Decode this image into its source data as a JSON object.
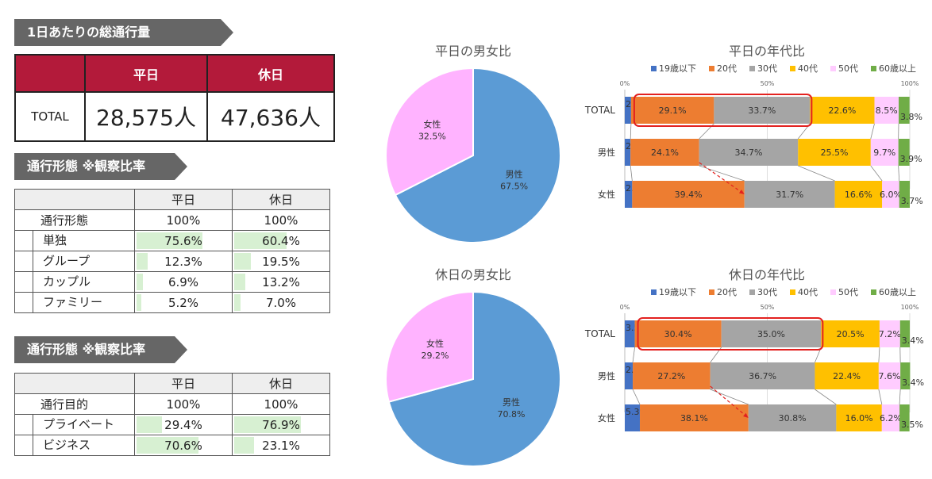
{
  "total_section": {
    "title": "1日あたりの総通行量",
    "headers": [
      "平日",
      "休日"
    ],
    "row_label": "TOTAL",
    "values": [
      "28,575人",
      "47,636人"
    ],
    "header_color": "#b31a3a"
  },
  "mode_section": {
    "title": "通行形態 ※観察比率",
    "headers": [
      "平日",
      "休日"
    ],
    "rows": [
      {
        "label": "通行形態",
        "weekday": "100%",
        "holiday": "100%",
        "bar": false
      },
      {
        "label": "単独",
        "weekday": "75.6%",
        "holiday": "60.4%",
        "wd": 75.6,
        "hd": 60.4,
        "bar": true
      },
      {
        "label": "グループ",
        "weekday": "12.3%",
        "holiday": "19.5%",
        "wd": 12.3,
        "hd": 19.5,
        "bar": true
      },
      {
        "label": "カップル",
        "weekday": "6.9%",
        "holiday": "13.2%",
        "wd": 6.9,
        "hd": 13.2,
        "bar": true
      },
      {
        "label": "ファミリー",
        "weekday": "5.2%",
        "holiday": "7.0%",
        "wd": 5.2,
        "hd": 7.0,
        "bar": true
      }
    ]
  },
  "purpose_section": {
    "title": "通行形態 ※観察比率",
    "headers": [
      "平日",
      "休日"
    ],
    "rows": [
      {
        "label": "通行目的",
        "weekday": "100%",
        "holiday": "100%",
        "bar": false
      },
      {
        "label": "プライベート",
        "weekday": "29.4%",
        "holiday": "76.9%",
        "wd": 29.4,
        "hd": 76.9,
        "bar": true
      },
      {
        "label": "ビジネス",
        "weekday": "70.6%",
        "holiday": "23.1%",
        "wd": 70.6,
        "hd": 23.1,
        "bar": true
      }
    ]
  },
  "chart_data": [
    {
      "type": "pie",
      "title": "平日の男女比",
      "labels": [
        "男性",
        "女性"
      ],
      "values": [
        67.5,
        32.5
      ],
      "value_labels": [
        "67.5%",
        "32.5%"
      ],
      "colors": [
        "#5b9bd5",
        "#ffb3ff"
      ]
    },
    {
      "type": "pie",
      "title": "休日の男女比",
      "labels": [
        "男性",
        "女性"
      ],
      "values": [
        70.8,
        29.2
      ],
      "value_labels": [
        "70.8%",
        "29.2%"
      ],
      "colors": [
        "#5b9bd5",
        "#ffb3ff"
      ]
    },
    {
      "type": "bar",
      "stacked": true,
      "orientation": "horizontal",
      "title": "平日の年代比",
      "categories": [
        "TOTAL",
        "男性",
        "女性"
      ],
      "xlim": [
        0,
        100
      ],
      "tick_labels": [
        "0%",
        "50%",
        "100%"
      ],
      "legend_position": "top",
      "series": [
        {
          "name": "19歳以下",
          "color": "#4472c4",
          "values": [
            2.2,
            2.0,
            2.6
          ],
          "labels": [
            "2.2%",
            "2.0%",
            "2.6%"
          ]
        },
        {
          "name": "20代",
          "color": "#ed7d31",
          "values": [
            29.1,
            24.1,
            39.4
          ],
          "labels": [
            "29.1%",
            "24.1%",
            "39.4%"
          ]
        },
        {
          "name": "30代",
          "color": "#a5a5a5",
          "values": [
            33.7,
            34.7,
            31.7
          ],
          "labels": [
            "33.7%",
            "34.7%",
            "31.7%"
          ]
        },
        {
          "name": "40代",
          "color": "#ffc000",
          "values": [
            22.6,
            25.5,
            16.6
          ],
          "labels": [
            "22.6%",
            "25.5%",
            "16.6%"
          ]
        },
        {
          "name": "50代",
          "color": "#ffccff",
          "values": [
            8.5,
            9.7,
            6.0
          ],
          "labels": [
            "8.5%",
            "9.7%",
            "6.0%"
          ]
        },
        {
          "name": "60歳以上",
          "color": "#70ad47",
          "values": [
            3.8,
            3.9,
            3.7
          ],
          "labels": [
            "3.8%",
            "3.9%",
            "3.7%"
          ]
        }
      ]
    },
    {
      "type": "bar",
      "stacked": true,
      "orientation": "horizontal",
      "title": "休日の年代比",
      "categories": [
        "TOTAL",
        "男性",
        "女性"
      ],
      "xlim": [
        0,
        100
      ],
      "tick_labels": [
        "0%",
        "50%",
        "100%"
      ],
      "legend_position": "top",
      "series": [
        {
          "name": "19歳以下",
          "color": "#4472c4",
          "values": [
            3.5,
            2.8,
            5.3
          ],
          "labels": [
            "3.5%",
            "2.8%",
            "5.3%"
          ]
        },
        {
          "name": "20代",
          "color": "#ed7d31",
          "values": [
            30.4,
            27.2,
            38.1
          ],
          "labels": [
            "30.4%",
            "27.2%",
            "38.1%"
          ]
        },
        {
          "name": "30代",
          "color": "#a5a5a5",
          "values": [
            35.0,
            36.7,
            30.8
          ],
          "labels": [
            "35.0%",
            "36.7%",
            "30.8%"
          ]
        },
        {
          "name": "40代",
          "color": "#ffc000",
          "values": [
            20.5,
            22.4,
            16.0
          ],
          "labels": [
            "20.5%",
            "22.4%",
            "16.0%"
          ]
        },
        {
          "name": "50代",
          "color": "#ffccff",
          "values": [
            7.2,
            7.6,
            6.2
          ],
          "labels": [
            "7.2%",
            "7.6%",
            "6.2%"
          ]
        },
        {
          "name": "60歳以上",
          "color": "#70ad47",
          "values": [
            3.4,
            3.4,
            3.5
          ],
          "labels": [
            "3.4%",
            "3.4%",
            "3.5%"
          ]
        }
      ]
    }
  ]
}
